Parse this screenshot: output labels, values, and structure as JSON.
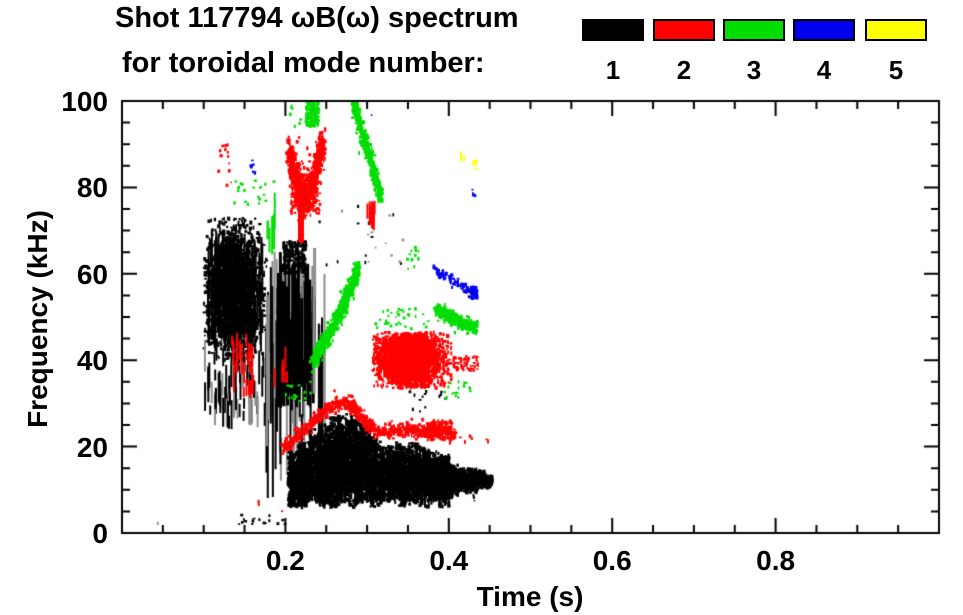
{
  "chart_data": {
    "type": "scatter",
    "title": "Shot 117794 ωB(ω) spectrum",
    "subtitle": "for toroidal mode number:",
    "xlabel": "Time (s)",
    "ylabel": "Frequency (kHz)",
    "xlim": [
      0,
      1.0
    ],
    "ylim": [
      0,
      100
    ],
    "x_major_ticks": [
      0.2,
      0.4,
      0.6,
      0.8
    ],
    "x_tick_labels": [
      "0.2",
      "0.4",
      "0.6",
      "0.8"
    ],
    "x_minor_step": 0.05,
    "y_major_ticks": [
      0,
      20,
      40,
      60,
      80,
      100
    ],
    "y_tick_labels": [
      "0",
      "20",
      "40",
      "60",
      "80",
      "100"
    ],
    "y_minor_step": 5,
    "grid": false,
    "legend": {
      "position": "top-right",
      "items": [
        {
          "mode": 1,
          "label": "1",
          "color": "#000000"
        },
        {
          "mode": 2,
          "label": "2",
          "color": "#ff0000"
        },
        {
          "mode": 3,
          "label": "3",
          "color": "#00dd00"
        },
        {
          "mode": 4,
          "label": "4",
          "color": "#0000ee"
        },
        {
          "mode": 5,
          "label": "5",
          "color": "#ffff00"
        }
      ]
    },
    "mode_colors": {
      "1": "#000000",
      "2": "#ff0000",
      "3": "#00dd00",
      "4": "#0000ee",
      "5": "#ffff00"
    },
    "gray_color": "#8f8f8f",
    "clusters": [
      {
        "mode": 1,
        "shape": "blob",
        "ct": 0.136,
        "cf": 56,
        "st": 0.016,
        "sf": 7.5,
        "n": 2300,
        "tclip": [
          0.1,
          0.178
        ],
        "fclip": [
          40,
          73
        ]
      },
      {
        "mode": 1,
        "shape": "vstreaks",
        "t": [
          0.105,
          0.172
        ],
        "f": [
          42,
          70
        ],
        "count": 200,
        "len": [
          2,
          9
        ],
        "w": 2
      },
      {
        "mode": 1,
        "shape": "vstreaks",
        "t": [
          0.1,
          0.178
        ],
        "f": [
          24,
          45
        ],
        "count": 80,
        "len": [
          2,
          8
        ],
        "w": 2,
        "gray": 0.35
      },
      {
        "mode": 1,
        "shape": "vstreaks",
        "t": [
          0.176,
          0.248
        ],
        "f": [
          8,
          66
        ],
        "count": 46,
        "len": [
          8,
          42
        ],
        "w": 2,
        "gray": 0.45
      },
      {
        "mode": 1,
        "shape": "vstreaks",
        "t": [
          0.19,
          0.237
        ],
        "f": [
          28,
          66
        ],
        "count": 60,
        "len": [
          10,
          30
        ],
        "w": 3,
        "gray": 0.15
      },
      {
        "mode": 1,
        "shape": "region",
        "t": [
          0.197,
          0.226
        ],
        "f": [
          60,
          67.5
        ],
        "n": 260
      },
      {
        "mode": 1,
        "shape": "bursts",
        "halfwidth": 0.0065,
        "density": 24,
        "vdashes": 7,
        "bursts": [
          [
            0.21,
            6,
            19
          ],
          [
            0.222,
            6,
            21
          ],
          [
            0.235,
            7,
            24
          ],
          [
            0.248,
            6,
            25
          ],
          [
            0.26,
            6,
            27
          ],
          [
            0.272,
            7,
            27.5
          ],
          [
            0.285,
            6,
            27
          ],
          [
            0.298,
            7,
            26
          ],
          [
            0.31,
            6,
            22
          ],
          [
            0.322,
            7,
            20
          ],
          [
            0.334,
            7,
            21
          ],
          [
            0.346,
            6,
            20.5
          ],
          [
            0.358,
            7,
            21
          ],
          [
            0.37,
            6,
            20
          ],
          [
            0.382,
            7,
            19
          ],
          [
            0.394,
            6,
            18
          ],
          [
            0.405,
            8,
            16
          ],
          [
            0.418,
            9.5,
            15
          ],
          [
            0.428,
            9,
            15
          ],
          [
            0.438,
            10,
            14.5
          ],
          [
            0.447,
            10.5,
            13.5
          ]
        ]
      },
      {
        "mode": 1,
        "shape": "region",
        "t": [
          0.14,
          0.2
        ],
        "f": [
          2,
          4.5
        ],
        "n": 16
      },
      {
        "mode": 1,
        "shape": "specks",
        "pts": [
          [
            0.045,
            2.3
          ]
        ],
        "gray": 0.6
      },
      {
        "mode": 1,
        "shape": "specks",
        "pts": [
          [
            0.43,
            8
          ]
        ]
      },
      {
        "mode": 1,
        "shape": "region",
        "t": [
          0.2,
          0.345
        ],
        "f": [
          62,
          79
        ],
        "n": 26,
        "gray": 0.5
      },
      {
        "mode": 1,
        "shape": "region",
        "t": [
          0.35,
          0.405
        ],
        "f": [
          28,
          33
        ],
        "n": 14
      },
      {
        "mode": 2,
        "shape": "path",
        "pts": [
          [
            0.203,
            88
          ],
          [
            0.214,
            82
          ],
          [
            0.225,
            77.5
          ],
          [
            0.236,
            83
          ],
          [
            0.247,
            90
          ]
        ],
        "th": 4.5,
        "n": 900
      },
      {
        "mode": 2,
        "shape": "region",
        "t": [
          0.207,
          0.243
        ],
        "f": [
          74,
          80
        ],
        "n": 200
      },
      {
        "mode": 2,
        "shape": "vstreaks",
        "t": [
          0.216,
          0.222
        ],
        "f": [
          67,
          80
        ],
        "count": 10,
        "len": [
          6,
          13
        ],
        "w": 2
      },
      {
        "mode": 2,
        "shape": "region",
        "t": [
          0.118,
          0.134
        ],
        "f": [
          80,
          90
        ],
        "n": 14
      },
      {
        "mode": 2,
        "shape": "vstreaks",
        "t": [
          0.133,
          0.163
        ],
        "f": [
          31,
          47.5
        ],
        "count": 26,
        "len": [
          2,
          7
        ],
        "w": 2
      },
      {
        "mode": 2,
        "shape": "vstreaks",
        "t": [
          0.185,
          0.202
        ],
        "f": [
          30,
          45
        ],
        "count": 6,
        "len": [
          2,
          5
        ],
        "w": 2
      },
      {
        "mode": 2,
        "shape": "path",
        "th": 1.7,
        "n": 850,
        "pts": [
          [
            0.197,
            19.5
          ],
          [
            0.21,
            21.5
          ],
          [
            0.225,
            24
          ],
          [
            0.24,
            26.8
          ],
          [
            0.255,
            29
          ],
          [
            0.268,
            30.3
          ],
          [
            0.278,
            30
          ],
          [
            0.29,
            27.8
          ],
          [
            0.3,
            25.5
          ],
          [
            0.312,
            23.3
          ],
          [
            0.33,
            23.6
          ],
          [
            0.35,
            23.9
          ],
          [
            0.368,
            23.4
          ],
          [
            0.385,
            23.9
          ],
          [
            0.4,
            23.4
          ],
          [
            0.408,
            22.8
          ]
        ]
      },
      {
        "mode": 2,
        "shape": "region",
        "t": [
          0.373,
          0.404
        ],
        "f": [
          21.5,
          26
        ],
        "n": 160
      },
      {
        "mode": 2,
        "shape": "specks",
        "pts": [
          [
            0.414,
            22.2
          ],
          [
            0.419,
            21.6
          ],
          [
            0.427,
            22.6
          ],
          [
            0.447,
            21.4
          ],
          [
            0.167,
            7.2
          ],
          [
            0.197,
            5.3
          ]
        ]
      },
      {
        "mode": 2,
        "shape": "blob",
        "ct": 0.352,
        "cf": 40,
        "st": 0.02,
        "sf": 3.4,
        "n": 2600,
        "tclip": [
          0.307,
          0.404
        ],
        "fclip": [
          33.5,
          46.5
        ]
      },
      {
        "mode": 2,
        "shape": "region",
        "t": [
          0.405,
          0.437
        ],
        "f": [
          37.5,
          41
        ],
        "n": 60
      },
      {
        "mode": 2,
        "shape": "vstreaks",
        "t": [
          0.3,
          0.317
        ],
        "f": [
          70,
          77
        ],
        "count": 9,
        "len": [
          3,
          7
        ],
        "w": 2
      },
      {
        "mode": 3,
        "shape": "region",
        "t": [
          0.225,
          0.241
        ],
        "f": [
          94,
          100
        ],
        "n": 170
      },
      {
        "mode": 3,
        "shape": "specks",
        "pts": [
          [
            0.205,
            97.5
          ],
          [
            0.208,
            98.5
          ],
          [
            0.218,
            95.5
          ],
          [
            0.212,
            94
          ]
        ]
      },
      {
        "mode": 3,
        "shape": "region",
        "t": [
          0.135,
          0.186
        ],
        "f": [
          76,
          82
        ],
        "n": 20
      },
      {
        "mode": 3,
        "shape": "vstreaks",
        "t": [
          0.177,
          0.187
        ],
        "f": [
          63,
          80
        ],
        "count": 6,
        "len": [
          3,
          9
        ],
        "w": 2
      },
      {
        "mode": 3,
        "shape": "path",
        "th": 2.6,
        "n": 520,
        "pts": [
          [
            0.283,
            100
          ],
          [
            0.291,
            94.5
          ],
          [
            0.299,
            89.5
          ],
          [
            0.306,
            85
          ],
          [
            0.312,
            81
          ],
          [
            0.317,
            78
          ]
        ]
      },
      {
        "mode": 3,
        "shape": "path",
        "th": 2.4,
        "n": 700,
        "pts": [
          [
            0.232,
            39.5
          ],
          [
            0.244,
            42.8
          ],
          [
            0.256,
            46.8
          ],
          [
            0.267,
            51
          ],
          [
            0.276,
            55
          ],
          [
            0.284,
            58.6
          ],
          [
            0.289,
            61
          ]
        ]
      },
      {
        "mode": 3,
        "shape": "region",
        "t": [
          0.31,
          0.377
        ],
        "f": [
          47,
          52
        ],
        "n": 36
      },
      {
        "mode": 3,
        "shape": "region",
        "t": [
          0.348,
          0.363
        ],
        "f": [
          61,
          65.5
        ],
        "n": 10
      },
      {
        "mode": 3,
        "shape": "path",
        "th": 1.7,
        "n": 300,
        "pts": [
          [
            0.384,
            51.6
          ],
          [
            0.398,
            50.2
          ],
          [
            0.412,
            49.2
          ],
          [
            0.424,
            48.2
          ],
          [
            0.434,
            47.4
          ]
        ]
      },
      {
        "mode": 3,
        "shape": "region",
        "t": [
          0.2,
          0.231
        ],
        "f": [
          30.5,
          35.5
        ],
        "n": 18
      },
      {
        "mode": 3,
        "shape": "region",
        "t": [
          0.388,
          0.412
        ],
        "f": [
          31,
          35.2
        ],
        "n": 12
      },
      {
        "mode": 3,
        "shape": "specks",
        "pts": [
          [
            0.42,
            34.5
          ],
          [
            0.426,
            33.2
          ],
          [
            0.36,
            65.5
          ]
        ]
      },
      {
        "mode": 4,
        "shape": "specks",
        "pts": [
          [
            0.158,
            84.5
          ],
          [
            0.1615,
            83.8
          ],
          [
            0.16,
            86
          ],
          [
            0.305,
            96.8
          ],
          [
            0.43,
            79
          ],
          [
            0.433,
            78.2
          ]
        ]
      },
      {
        "mode": 4,
        "shape": "path",
        "th": 1.2,
        "n": 90,
        "pts": [
          [
            0.383,
            61.3
          ],
          [
            0.397,
            59.6
          ],
          [
            0.41,
            58
          ],
          [
            0.42,
            56.8
          ],
          [
            0.428,
            55.6
          ],
          [
            0.433,
            54.8
          ]
        ]
      },
      {
        "mode": 4,
        "shape": "region",
        "t": [
          0.427,
          0.435
        ],
        "f": [
          54.2,
          57
        ],
        "n": 40
      },
      {
        "mode": 5,
        "shape": "vstreaks",
        "t": [
          0.413,
          0.417
        ],
        "f": [
          86,
          88.5
        ],
        "count": 2,
        "len": [
          2,
          3
        ],
        "w": 2
      },
      {
        "mode": 5,
        "shape": "specks",
        "pts": [
          [
            0.419,
            86.5
          ],
          [
            0.431,
            85.3
          ],
          [
            0.434,
            84.8
          ],
          [
            0.4335,
            85.8
          ]
        ]
      }
    ]
  }
}
